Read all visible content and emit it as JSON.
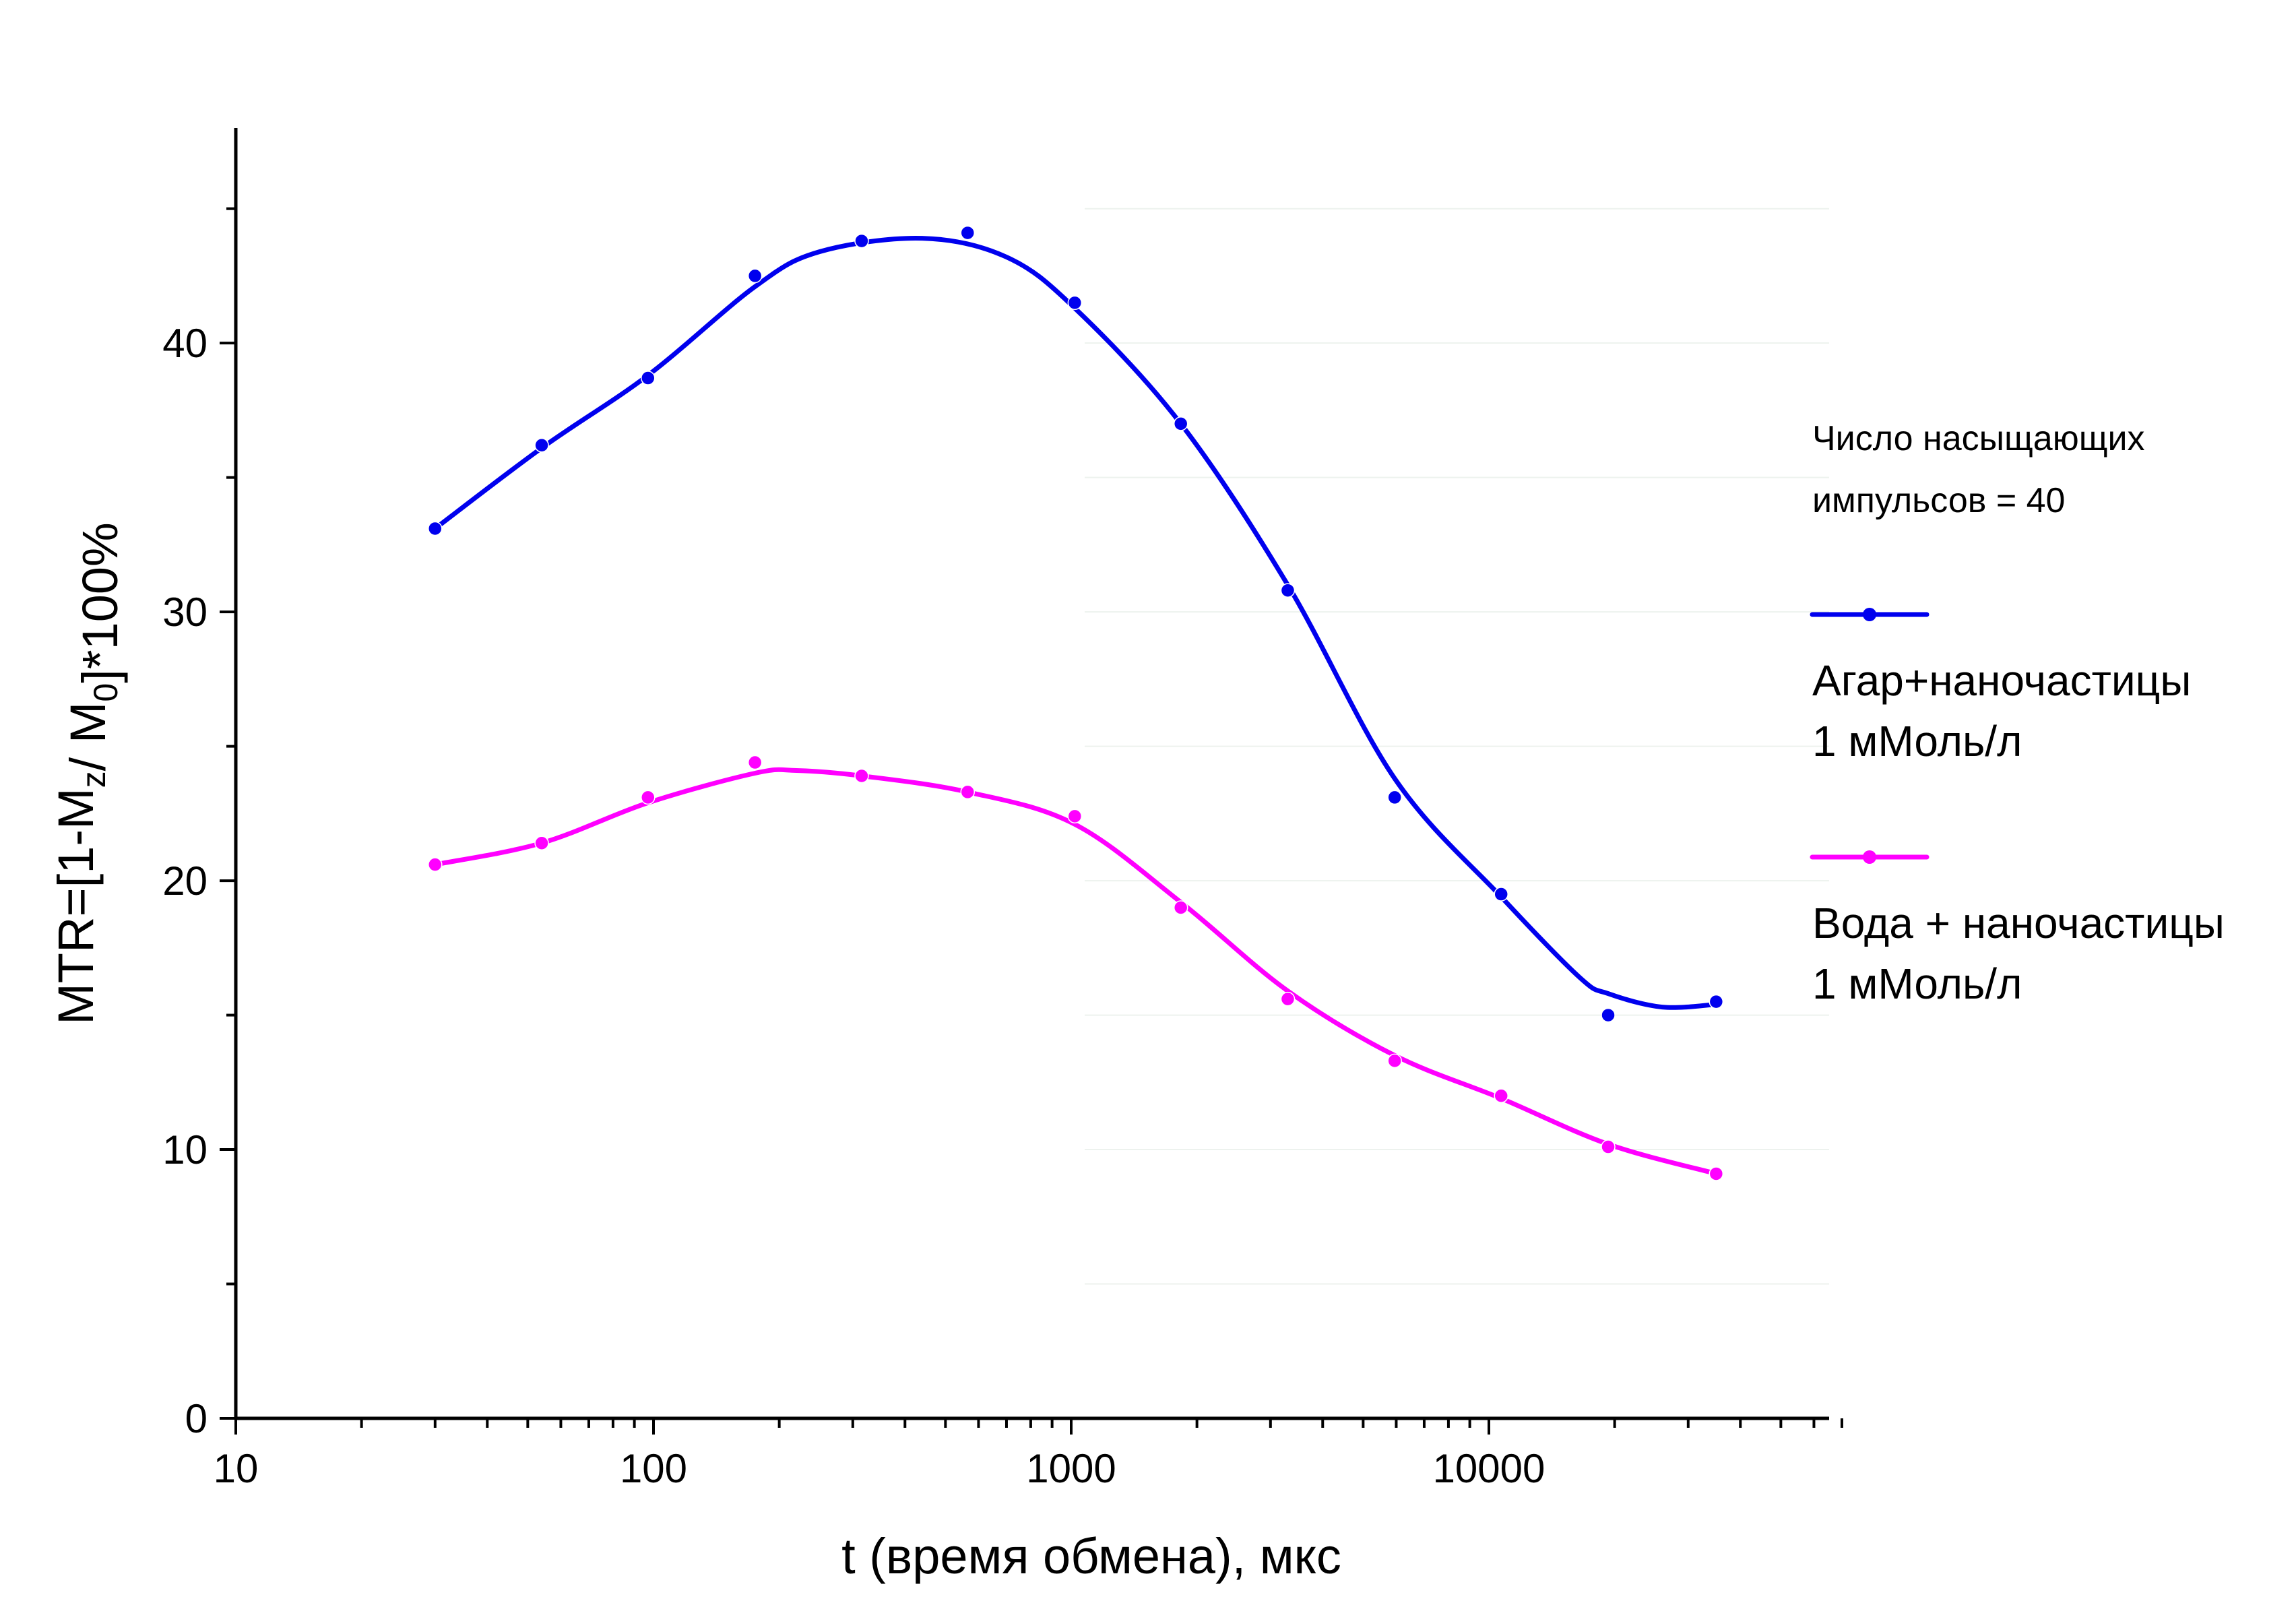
{
  "chart_data": {
    "type": "line",
    "xscale": "log",
    "xlim": [
      10,
      70000
    ],
    "ylim": [
      0,
      48
    ],
    "xlabel": "t (время обмена), мкс",
    "ylabel": "MTR=[1-M_z/ M_0]*100%",
    "xticks": [
      10,
      100,
      1000,
      10000
    ],
    "xtick_labels": [
      "10",
      "100",
      "1000",
      "10000"
    ],
    "yticks": [
      0,
      10,
      20,
      30,
      40
    ],
    "ytick_labels": [
      "0",
      "10",
      "20",
      "30",
      "40"
    ],
    "grid": "faint horizontal lines (right part)",
    "legend": {
      "placement": "right, outside plot",
      "title_lines": [
        "Число насыщающих",
        "импульсов = 40"
      ]
    },
    "series": [
      {
        "name_lines": [
          "Агар+наночастицы",
          "1 мМоль/л"
        ],
        "color": "#0000ee",
        "x": [
          30,
          54,
          97,
          175,
          315,
          565,
          1020,
          1830,
          3300,
          5950,
          10700,
          19300,
          35000
        ],
        "y": [
          33.1,
          36.2,
          38.7,
          42.5,
          43.8,
          44.1,
          41.5,
          37.0,
          30.8,
          23.1,
          19.5,
          15.0,
          15.5
        ],
        "curve_x": [
          30,
          54,
          97,
          175,
          250,
          440,
          700,
          1020,
          1830,
          3300,
          5950,
          10700,
          16500,
          19300,
          26000,
          35000
        ],
        "curve_y": [
          33.1,
          36.1,
          38.8,
          42.1,
          43.4,
          43.9,
          43.2,
          41.3,
          37.0,
          31.0,
          23.8,
          19.4,
          16.4,
          15.8,
          15.3,
          15.4
        ]
      },
      {
        "name_lines": [
          "Вода + наночастицы",
          "1 мМоль/л"
        ],
        "color": "#ff00ff",
        "x": [
          30,
          54,
          97,
          175,
          315,
          565,
          1020,
          1830,
          3300,
          5950,
          10700,
          19300,
          35000
        ],
        "y": [
          20.6,
          21.4,
          23.1,
          24.4,
          23.9,
          23.3,
          22.4,
          19.0,
          15.6,
          13.3,
          12.0,
          10.1,
          9.1
        ],
        "curve_x": [
          30,
          54,
          97,
          175,
          220,
          315,
          565,
          1020,
          1830,
          3300,
          5950,
          10700,
          19300,
          35000
        ],
        "curve_y": [
          20.6,
          21.4,
          22.9,
          24.0,
          24.1,
          23.9,
          23.3,
          22.1,
          19.2,
          15.9,
          13.5,
          11.9,
          10.2,
          9.1
        ]
      }
    ]
  }
}
